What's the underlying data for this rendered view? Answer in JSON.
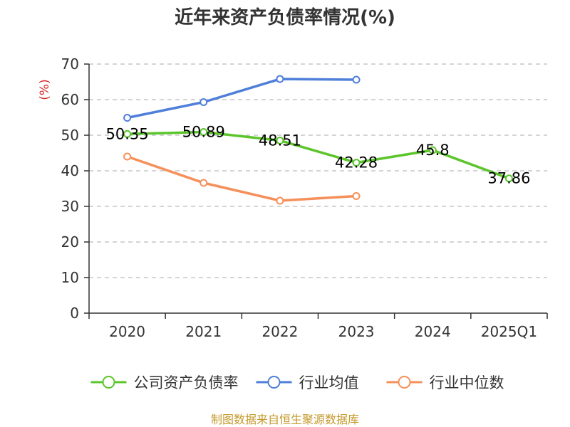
{
  "chart_data": {
    "type": "line",
    "title": "近年来资产负债率情况(%)",
    "ylabel": "(%)",
    "categories": [
      "2020",
      "2021",
      "2022",
      "2023",
      "2024",
      "2025Q1"
    ],
    "ylim": [
      0,
      70
    ],
    "yticks": [
      0,
      10,
      20,
      30,
      40,
      50,
      60,
      70
    ],
    "grid": true,
    "legend_position": "bottom",
    "series": [
      {
        "name": "公司资产负债率",
        "color": "#5cc52c",
        "values": [
          50.35,
          50.89,
          48.51,
          42.28,
          45.8,
          37.86
        ],
        "labels": [
          "50.35",
          "50.89",
          "48.51",
          "42.28",
          "45.8",
          "37.86"
        ],
        "show_labels": true
      },
      {
        "name": "行业均值",
        "color": "#4f7fd9",
        "values": [
          54.9,
          59.3,
          65.8,
          65.6,
          null,
          null
        ],
        "show_labels": false
      },
      {
        "name": "行业中位数",
        "color": "#f5905a",
        "values": [
          44.0,
          36.6,
          31.6,
          32.9,
          null,
          null
        ],
        "show_labels": false
      }
    ]
  },
  "source": "制图数据来自恒生聚源数据库",
  "colors": {
    "axis": "#333333",
    "grid": "#bbbbbb",
    "unit": "#d62728",
    "source": "#c49a2c"
  }
}
